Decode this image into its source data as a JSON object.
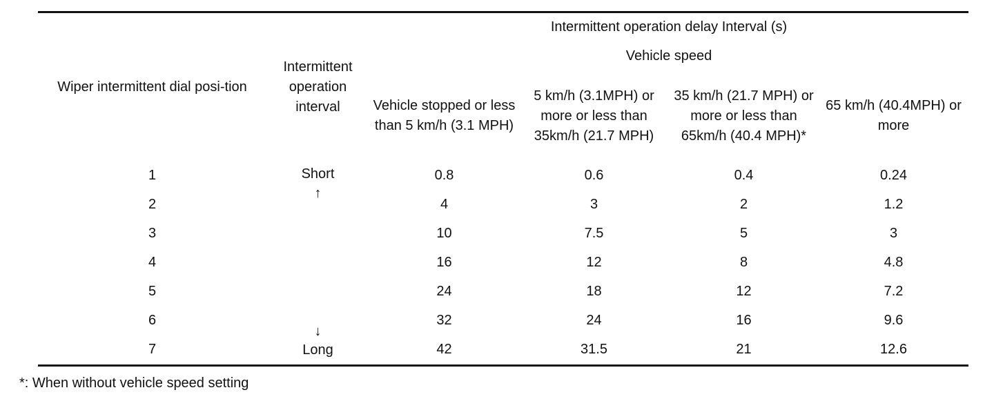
{
  "table": {
    "headers": {
      "dial_position": "Wiper intermittent dial posi-tion",
      "interval": "Intermittent operation interval",
      "delay": "Intermittent operation delay Interval (s)",
      "speed": "Vehicle speed",
      "speed_columns": [
        "Vehicle stopped or less than 5 km/h (3.1 MPH)",
        "5 km/h (3.1MPH) or more or less than 35km/h (21.7 MPH)",
        "35 km/h (21.7 MPH) or more or less than 65km/h (40.4 MPH)*",
        "65 km/h (40.4MPH) or more"
      ]
    },
    "interval_labels": {
      "short": "Short",
      "up_arrow": "↑",
      "down_arrow": "↓",
      "long": "Long"
    },
    "rows": [
      {
        "position": "1",
        "values": [
          "0.8",
          "0.6",
          "0.4",
          "0.24"
        ]
      },
      {
        "position": "2",
        "values": [
          "4",
          "3",
          "2",
          "1.2"
        ]
      },
      {
        "position": "3",
        "values": [
          "10",
          "7.5",
          "5",
          "3"
        ]
      },
      {
        "position": "4",
        "values": [
          "16",
          "12",
          "8",
          "4.8"
        ]
      },
      {
        "position": "5",
        "values": [
          "24",
          "18",
          "12",
          "7.2"
        ]
      },
      {
        "position": "6",
        "values": [
          "32",
          "24",
          "16",
          "9.6"
        ]
      },
      {
        "position": "7",
        "values": [
          "42",
          "31.5",
          "21",
          "12.6"
        ]
      }
    ]
  },
  "footnote": "*: When without vehicle speed setting"
}
